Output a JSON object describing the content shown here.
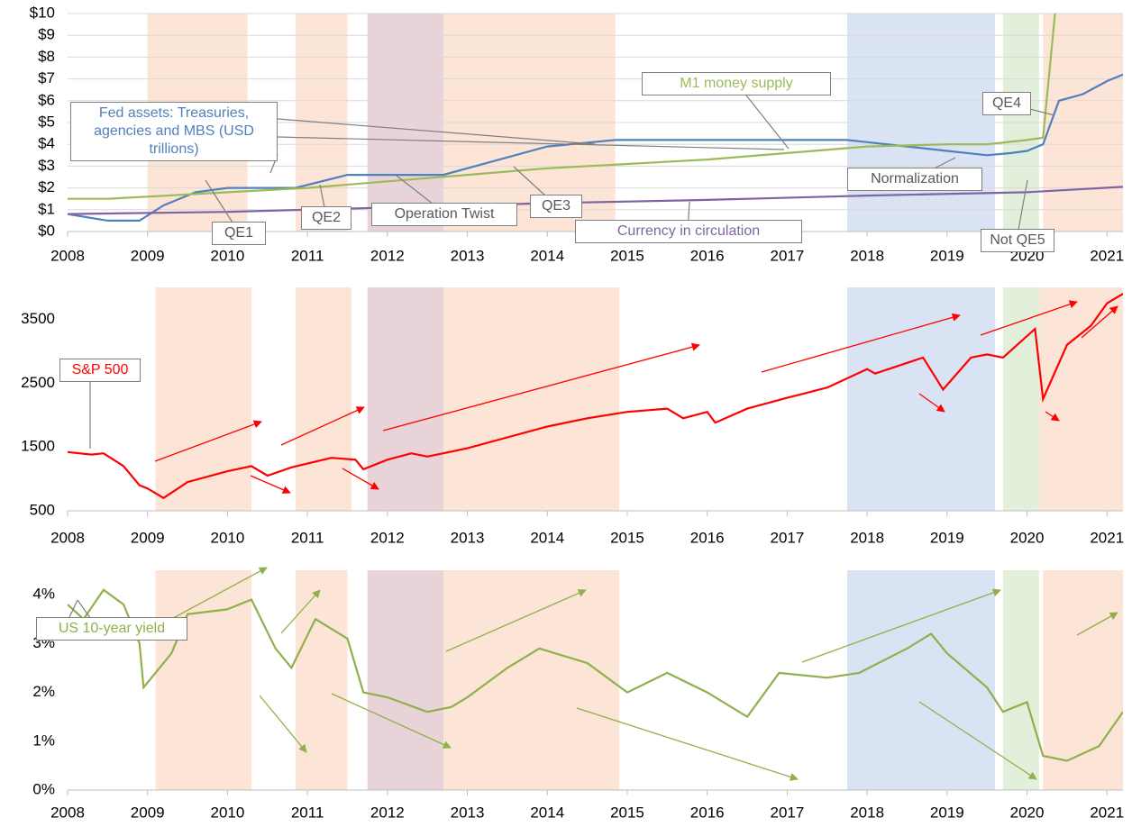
{
  "chart_data": [
    {
      "type": "line",
      "xlim": [
        2008,
        2021.2
      ],
      "xticks": [
        2008,
        2009,
        2010,
        2011,
        2012,
        2013,
        2014,
        2015,
        2016,
        2017,
        2018,
        2019,
        2020,
        2021
      ],
      "ylim": [
        0,
        10
      ],
      "yticks": [
        {
          "value": 0,
          "label": "$0"
        },
        {
          "value": 1,
          "label": "$1"
        },
        {
          "value": 2,
          "label": "$2"
        },
        {
          "value": 3,
          "label": "$3"
        },
        {
          "value": 4,
          "label": "$4"
        },
        {
          "value": 5,
          "label": "$5"
        },
        {
          "value": 6,
          "label": "$6"
        },
        {
          "value": 7,
          "label": "$7"
        },
        {
          "value": 8,
          "label": "$8"
        },
        {
          "value": 9,
          "label": "$9"
        },
        {
          "value": 10,
          "label": "$10"
        }
      ],
      "grid": true,
      "regions": [
        {
          "x0": 2009.0,
          "x1": 2010.25,
          "color": "#fce4d6",
          "label": "QE1"
        },
        {
          "x0": 2010.85,
          "x1": 2011.5,
          "color": "#fce4d6",
          "label": "QE2"
        },
        {
          "x0": 2011.75,
          "x1": 2012.7,
          "color": "#e8d3d9",
          "label": "Operation Twist"
        },
        {
          "x0": 2012.7,
          "x1": 2014.85,
          "color": "#fce4d6",
          "label": "QE3"
        },
        {
          "x0": 2017.75,
          "x1": 2019.6,
          "color": "#dae3f3",
          "label": "Normalization"
        },
        {
          "x0": 2019.7,
          "x1": 2020.15,
          "color": "#e2efda",
          "label": "Not QE5"
        },
        {
          "x0": 2020.2,
          "x1": 2021.2,
          "color": "#fce4d6",
          "label": "QE4"
        }
      ],
      "series": [
        {
          "name": "Fed assets: Treasuries, agencies and MBS (USD trillions)",
          "color": "#4f81bd",
          "x": [
            2008,
            2008.5,
            2008.9,
            2009.2,
            2009.6,
            2010,
            2010.5,
            2010.85,
            2011.5,
            2012,
            2012.7,
            2013,
            2013.5,
            2014,
            2014.85,
            2015,
            2016,
            2017,
            2017.75,
            2018,
            2018.5,
            2019,
            2019.5,
            2019.8,
            2020,
            2020.2,
            2020.4,
            2020.7,
            2021,
            2021.2
          ],
          "values": [
            0.8,
            0.5,
            0.5,
            1.2,
            1.8,
            2.0,
            2.0,
            2.0,
            2.6,
            2.6,
            2.6,
            2.9,
            3.4,
            3.9,
            4.2,
            4.2,
            4.2,
            4.2,
            4.2,
            4.1,
            3.9,
            3.7,
            3.5,
            3.6,
            3.7,
            4.0,
            6.0,
            6.3,
            6.9,
            7.2
          ]
        },
        {
          "name": "M1 money supply",
          "color": "#9bbb59",
          "x": [
            2008,
            2008.5,
            2009,
            2010,
            2011,
            2012,
            2013,
            2014,
            2015,
            2016,
            2017,
            2018,
            2019,
            2019.5,
            2020,
            2020.2,
            2020.35
          ],
          "values": [
            1.5,
            1.5,
            1.6,
            1.8,
            2.0,
            2.3,
            2.6,
            2.9,
            3.1,
            3.3,
            3.6,
            3.9,
            4.0,
            4.0,
            4.2,
            4.3,
            10
          ]
        },
        {
          "name": "Currency in circulation",
          "color": "#8064a2",
          "x": [
            2008,
            2010,
            2012,
            2014,
            2016,
            2018,
            2020,
            2021.2
          ],
          "values": [
            0.8,
            0.9,
            1.1,
            1.3,
            1.45,
            1.65,
            1.8,
            2.05
          ]
        }
      ]
    },
    {
      "type": "line",
      "xlim": [
        2008,
        2021.2
      ],
      "xticks": [
        2008,
        2009,
        2010,
        2011,
        2012,
        2013,
        2014,
        2015,
        2016,
        2017,
        2018,
        2019,
        2020,
        2021
      ],
      "ylim": [
        500,
        4000
      ],
      "yticks": [
        500,
        1500,
        2500,
        3500
      ],
      "grid": false,
      "regions": [
        {
          "x0": 2009.1,
          "x1": 2010.3,
          "color": "#fce4d6"
        },
        {
          "x0": 2010.85,
          "x1": 2011.55,
          "color": "#fce4d6"
        },
        {
          "x0": 2011.75,
          "x1": 2012.7,
          "color": "#e8d3d9"
        },
        {
          "x0": 2012.7,
          "x1": 2014.9,
          "color": "#fce4d6"
        },
        {
          "x0": 2017.75,
          "x1": 2019.6,
          "color": "#dae3f3"
        },
        {
          "x0": 2019.7,
          "x1": 2020.15,
          "color": "#e2efda"
        },
        {
          "x0": 2020.15,
          "x1": 2021.2,
          "color": "#fce4d6"
        }
      ],
      "series": [
        {
          "name": "S&P 500",
          "color": "#ff0000",
          "x": [
            2008,
            2008.3,
            2008.45,
            2008.7,
            2008.9,
            2009.0,
            2009.2,
            2009.5,
            2010,
            2010.3,
            2010.5,
            2010.8,
            2011.3,
            2011.6,
            2011.7,
            2012,
            2012.3,
            2012.5,
            2013,
            2013.5,
            2014,
            2014.5,
            2015,
            2015.5,
            2015.7,
            2016,
            2016.1,
            2016.5,
            2017,
            2017.5,
            2018,
            2018.1,
            2018.7,
            2018.95,
            2019.3,
            2019.5,
            2019.7,
            2020.1,
            2020.2,
            2020.5,
            2020.8,
            2021,
            2021.2
          ],
          "values": [
            1420,
            1380,
            1400,
            1200,
            900,
            850,
            700,
            950,
            1120,
            1200,
            1050,
            1180,
            1330,
            1300,
            1150,
            1300,
            1400,
            1350,
            1480,
            1650,
            1820,
            1950,
            2050,
            2100,
            1950,
            2050,
            1880,
            2100,
            2270,
            2430,
            2720,
            2650,
            2900,
            2400,
            2900,
            2950,
            2900,
            3350,
            2250,
            3100,
            3400,
            3750,
            3900
          ]
        }
      ]
    },
    {
      "type": "line",
      "xlim": [
        2008,
        2021.2
      ],
      "xticks": [
        2008,
        2009,
        2010,
        2011,
        2012,
        2013,
        2014,
        2015,
        2016,
        2017,
        2018,
        2019,
        2020,
        2021
      ],
      "ylim": [
        0,
        4.5
      ],
      "yticks": [
        {
          "value": 0,
          "label": "0%"
        },
        {
          "value": 1,
          "label": "1%"
        },
        {
          "value": 2,
          "label": "2%"
        },
        {
          "value": 3,
          "label": "3%"
        },
        {
          "value": 4,
          "label": "4%"
        }
      ],
      "grid": false,
      "regions": [
        {
          "x0": 2009.1,
          "x1": 2010.3,
          "color": "#fce4d6"
        },
        {
          "x0": 2010.85,
          "x1": 2011.5,
          "color": "#fce4d6"
        },
        {
          "x0": 2011.75,
          "x1": 2012.7,
          "color": "#e8d3d9"
        },
        {
          "x0": 2012.7,
          "x1": 2014.9,
          "color": "#fce4d6"
        },
        {
          "x0": 2017.75,
          "x1": 2019.6,
          "color": "#dae3f3"
        },
        {
          "x0": 2019.7,
          "x1": 2020.15,
          "color": "#e2efda"
        },
        {
          "x0": 2020.2,
          "x1": 2021.2,
          "color": "#fce4d6"
        }
      ],
      "series": [
        {
          "name": "US 10-year yield",
          "color": "#8fb04a",
          "x": [
            2008,
            2008.2,
            2008.45,
            2008.7,
            2008.9,
            2008.95,
            2009.3,
            2009.5,
            2010,
            2010.3,
            2010.6,
            2010.8,
            2011.1,
            2011.5,
            2011.7,
            2012,
            2012.5,
            2012.8,
            2013,
            2013.5,
            2013.9,
            2014.5,
            2015,
            2015.5,
            2016,
            2016.5,
            2016.9,
            2017.5,
            2017.9,
            2018.5,
            2018.8,
            2019,
            2019.5,
            2019.7,
            2020,
            2020.2,
            2020.5,
            2020.9,
            2021.2
          ],
          "values": [
            3.8,
            3.5,
            4.1,
            3.8,
            3.0,
            2.1,
            2.8,
            3.6,
            3.7,
            3.9,
            2.9,
            2.5,
            3.5,
            3.1,
            2.0,
            1.9,
            1.6,
            1.7,
            1.9,
            2.5,
            2.9,
            2.6,
            2.0,
            2.4,
            2.0,
            1.5,
            2.4,
            2.3,
            2.4,
            2.9,
            3.2,
            2.8,
            2.1,
            1.6,
            1.8,
            0.7,
            0.6,
            0.9,
            1.6
          ]
        }
      ]
    }
  ]
}
